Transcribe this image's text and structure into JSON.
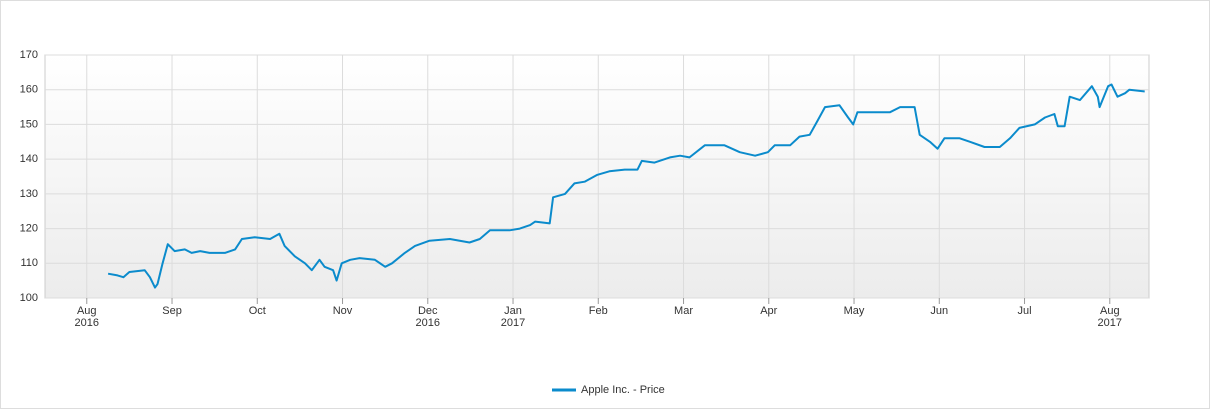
{
  "chart_data": {
    "type": "line",
    "x": [
      0.25,
      0.36,
      0.43,
      0.5,
      0.68,
      0.74,
      0.8,
      0.83,
      0.89,
      0.95,
      1.03,
      1.15,
      1.23,
      1.33,
      1.44,
      1.62,
      1.74,
      1.82,
      1.97,
      2.15,
      2.26,
      2.32,
      2.44,
      2.56,
      2.64,
      2.73,
      2.79,
      2.89,
      2.93,
      2.99,
      3.09,
      3.2,
      3.38,
      3.5,
      3.58,
      3.73,
      3.85,
      4.02,
      4.26,
      4.49,
      4.61,
      4.73,
      4.84,
      4.96,
      5.08,
      5.2,
      5.26,
      5.43,
      5.47,
      5.61,
      5.72,
      5.84,
      5.99,
      6.13,
      6.31,
      6.46,
      6.51,
      6.66,
      6.84,
      6.96,
      7.07,
      7.25,
      7.48,
      7.66,
      7.84,
      7.99,
      8.07,
      8.25,
      8.36,
      8.48,
      8.57,
      8.66,
      8.83,
      8.93,
      8.99,
      9.04,
      9.18,
      9.42,
      9.54,
      9.71,
      9.77,
      9.89,
      9.98,
      10.06,
      10.24,
      10.36,
      10.53,
      10.71,
      10.83,
      10.94,
      11.12,
      11.24,
      11.35,
      11.39,
      11.47,
      11.53,
      11.65,
      11.79,
      11.86,
      11.88,
      11.98,
      12.02,
      12.09,
      12.18,
      12.23,
      12.41
    ],
    "series": [
      {
        "name": "Apple Inc. - Price",
        "color": "#0b8bcc",
        "values": [
          107,
          106.5,
          106,
          107.5,
          108,
          106,
          103,
          104,
          110,
          115.5,
          113.5,
          114,
          113,
          113.5,
          113,
          113,
          114,
          117,
          117.5,
          117,
          118.5,
          115,
          112,
          110,
          108,
          111,
          109,
          108,
          105,
          110,
          111,
          111.5,
          111,
          109,
          110,
          113,
          115,
          116.5,
          117,
          116,
          117,
          119.5,
          119.5,
          119.5,
          120,
          121,
          122,
          121.5,
          129,
          130,
          133,
          133.5,
          135.5,
          136.5,
          137,
          137,
          139.5,
          139,
          140.5,
          141,
          140.5,
          144,
          144,
          142,
          141,
          142,
          144,
          144,
          146.5,
          147,
          151,
          155,
          155.5,
          152,
          150,
          153.5,
          153.5,
          153.5,
          155,
          155,
          147,
          145,
          143,
          146,
          146,
          145,
          143.5,
          143.5,
          146,
          149,
          150,
          152,
          153,
          149.5,
          149.5,
          158,
          157,
          161,
          158,
          155,
          161,
          161.5,
          158,
          159,
          160,
          159.5
        ]
      }
    ],
    "xlim": [
      -0.49,
      12.46
    ],
    "xticks": [
      {
        "value": 0,
        "label": "Aug",
        "year": "2016"
      },
      {
        "value": 1,
        "label": "Sep"
      },
      {
        "value": 2,
        "label": "Oct"
      },
      {
        "value": 3,
        "label": "Nov"
      },
      {
        "value": 4,
        "label": "Dec",
        "year": "2016"
      },
      {
        "value": 5,
        "label": "Jan",
        "year": "2017"
      },
      {
        "value": 6,
        "label": "Feb"
      },
      {
        "value": 7,
        "label": "Mar"
      },
      {
        "value": 8,
        "label": "Apr"
      },
      {
        "value": 9,
        "label": "May"
      },
      {
        "value": 10,
        "label": "Jun"
      },
      {
        "value": 11,
        "label": "Jul"
      },
      {
        "value": 12,
        "label": "Aug",
        "year": "2017"
      }
    ],
    "ylim": [
      100,
      170
    ],
    "yticks": [
      100,
      110,
      120,
      130,
      140,
      150,
      160,
      170
    ],
    "grid": true
  }
}
